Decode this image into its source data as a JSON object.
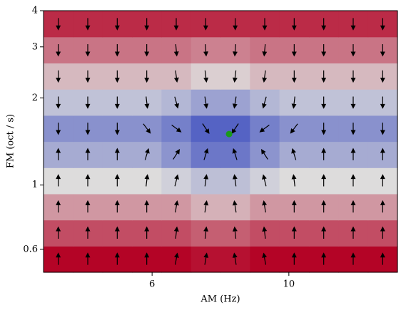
{
  "chart_data": {
    "type": "contour",
    "xlabel": "AM (Hz)",
    "ylabel": "FM (oct / s)",
    "xscale": "log",
    "yscale": "log",
    "xlim": [
      4,
      15
    ],
    "ylim": [
      0.5,
      4
    ],
    "xticks": [
      6,
      10
    ],
    "yticks": [
      0.6,
      1,
      2,
      3,
      4
    ],
    "z": [
      [
        1.0,
        1.0,
        1.0,
        1.0,
        1.0,
        0.97,
        0.97,
        1.0,
        1.0,
        1.0,
        1.0,
        1.0
      ],
      [
        0.83,
        0.83,
        0.83,
        0.83,
        0.83,
        0.79,
        0.79,
        0.83,
        0.83,
        0.83,
        0.83,
        0.83
      ],
      [
        0.66,
        0.66,
        0.66,
        0.66,
        0.66,
        0.6,
        0.6,
        0.66,
        0.66,
        0.66,
        0.66,
        0.66
      ],
      [
        0.5,
        0.5,
        0.5,
        0.5,
        0.46,
        0.4,
        0.4,
        0.46,
        0.5,
        0.5,
        0.5,
        0.5
      ],
      [
        0.33,
        0.33,
        0.33,
        0.33,
        0.25,
        0.15,
        0.15,
        0.25,
        0.33,
        0.33,
        0.33,
        0.33
      ],
      [
        0.24,
        0.24,
        0.24,
        0.24,
        0.18,
        0.08,
        0.08,
        0.18,
        0.24,
        0.24,
        0.24,
        0.24
      ],
      [
        0.41,
        0.41,
        0.41,
        0.41,
        0.37,
        0.3,
        0.3,
        0.37,
        0.41,
        0.41,
        0.41,
        0.41
      ],
      [
        0.58,
        0.58,
        0.58,
        0.58,
        0.58,
        0.53,
        0.53,
        0.58,
        0.58,
        0.58,
        0.58,
        0.58
      ],
      [
        0.74,
        0.74,
        0.74,
        0.74,
        0.74,
        0.71,
        0.71,
        0.74,
        0.74,
        0.74,
        0.74,
        0.74
      ],
      [
        0.91,
        0.91,
        0.91,
        0.91,
        0.91,
        0.91,
        0.91,
        0.91,
        0.91,
        0.91,
        0.91,
        0.91
      ]
    ],
    "colormap": [
      "#3b4cc0",
      "#dddcdc",
      "#b40426"
    ],
    "quiver_color": "#000000",
    "marker": {
      "x": 8,
      "y": 1.5,
      "color": "#1a9a1a"
    }
  }
}
